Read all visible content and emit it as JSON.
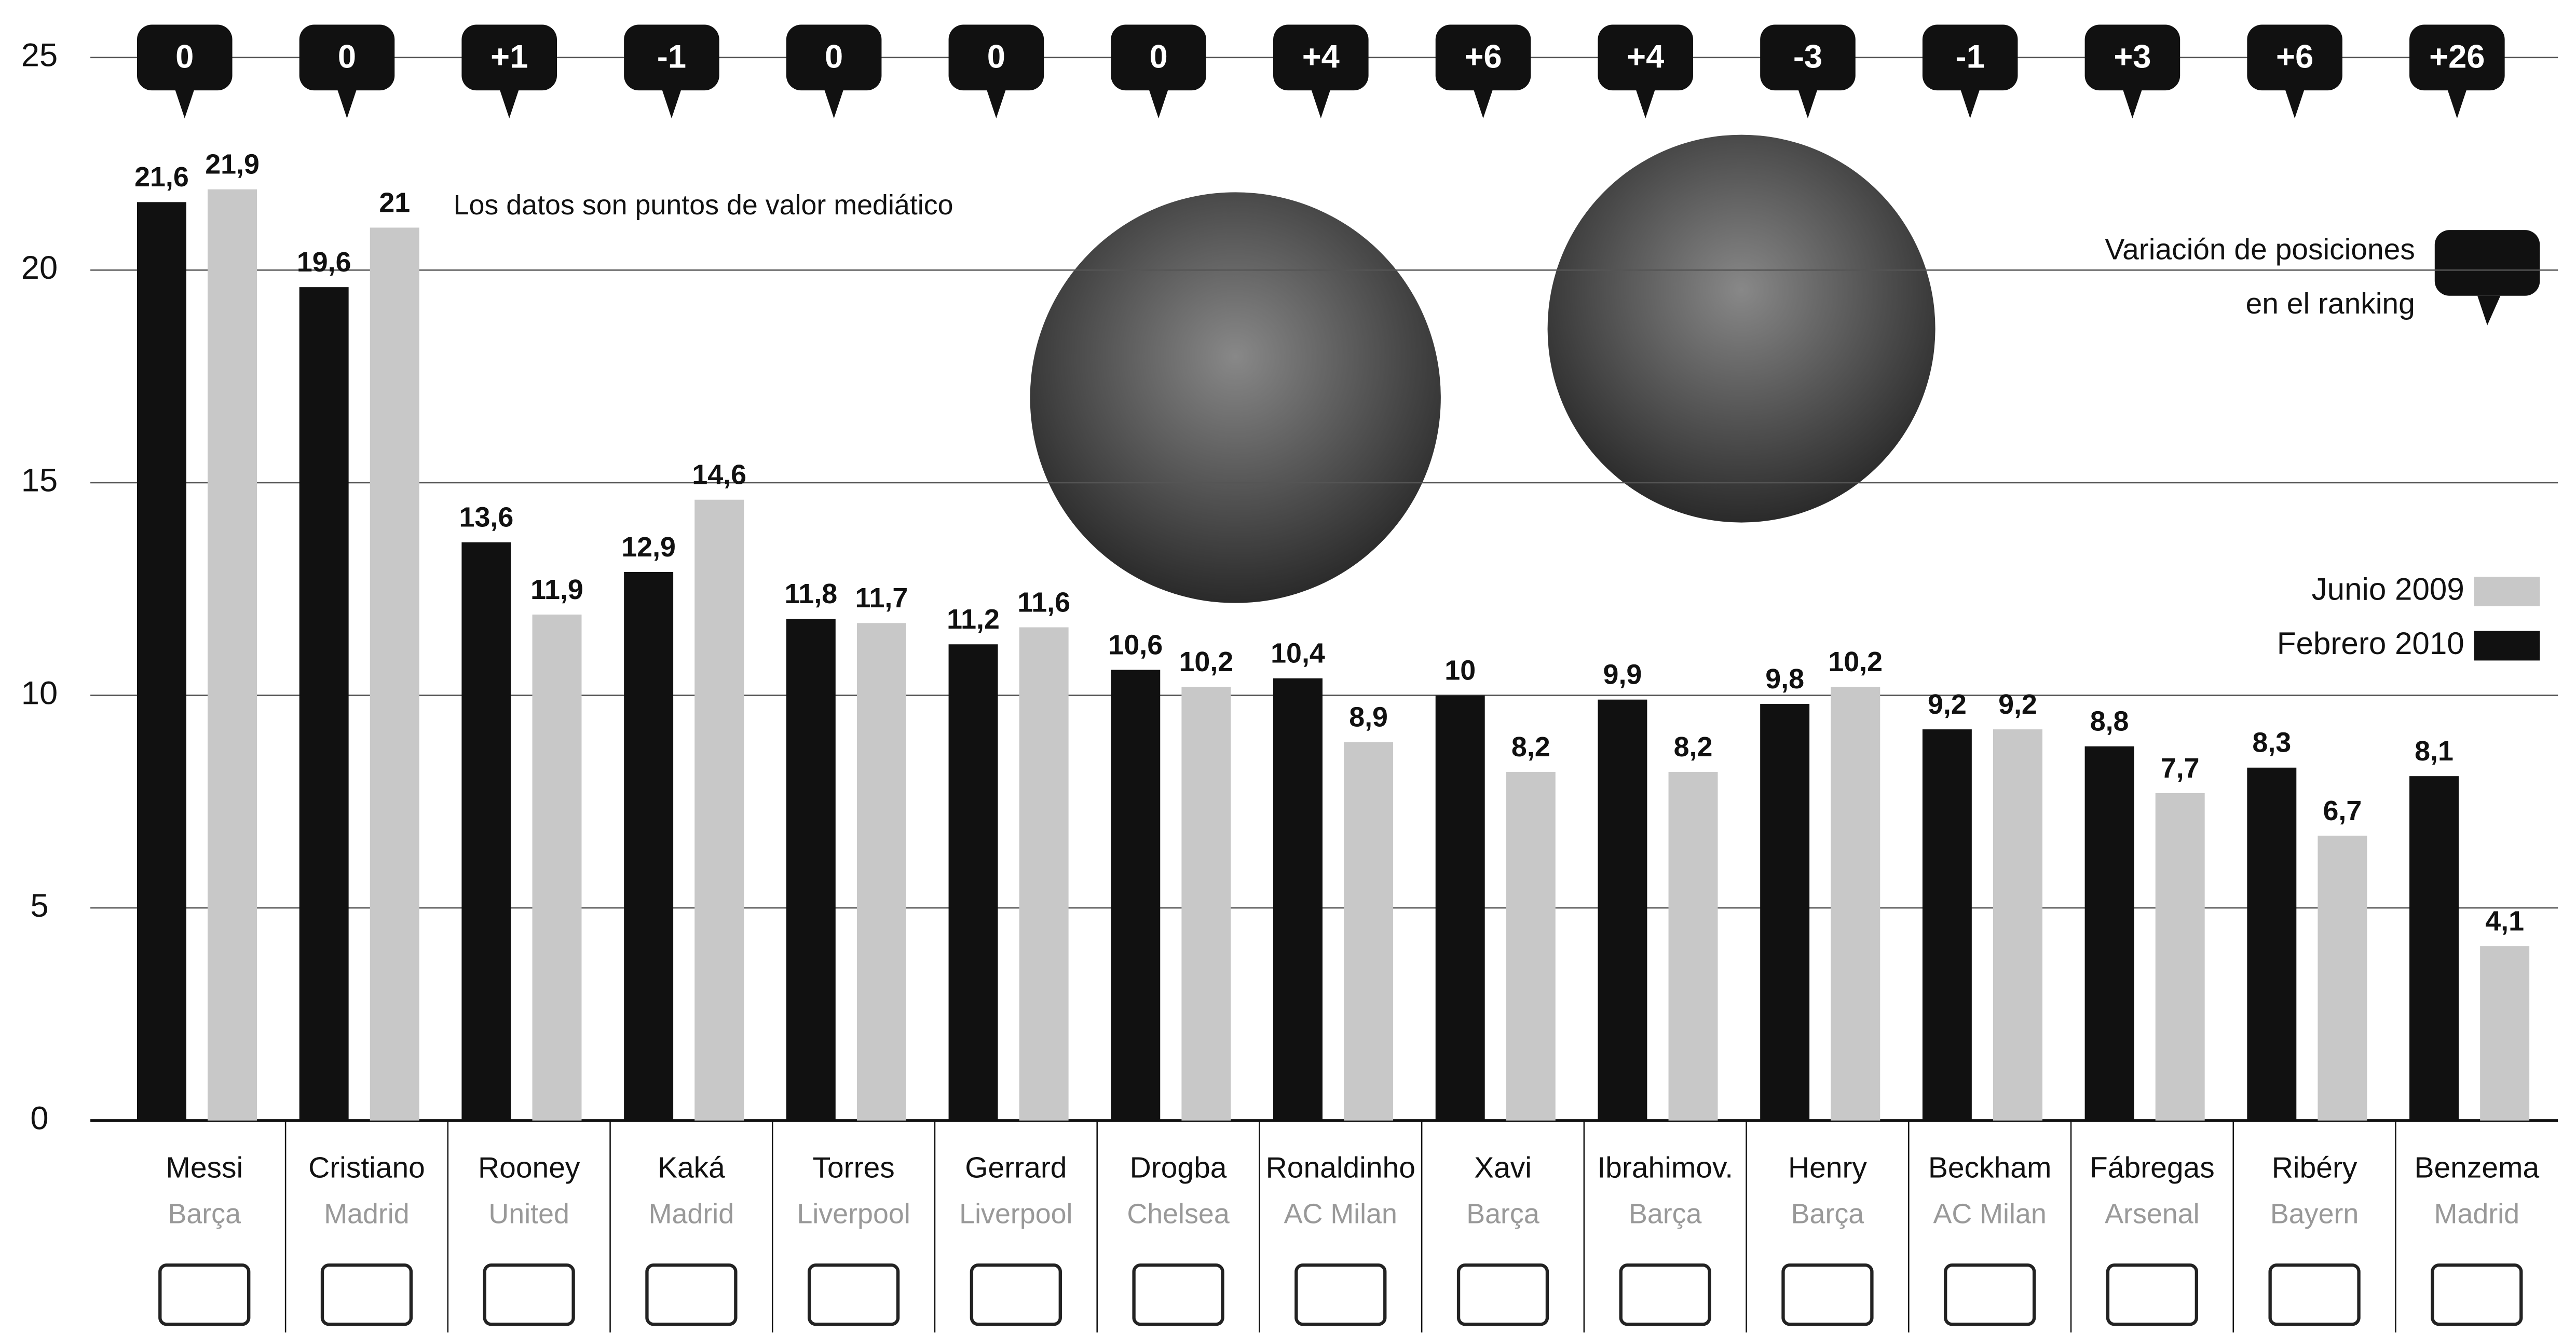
{
  "chart_data": {
    "type": "bar",
    "note": "Los datos son puntos de valor mediático",
    "variation_label": [
      "Variación de posiciones",
      "en el ranking"
    ],
    "categories": [
      "Messi",
      "Cristiano",
      "Rooney",
      "Kaká",
      "Torres",
      "Gerrard",
      "Drogba",
      "Ronaldinho",
      "Xavi",
      "Ibrahimov.",
      "Henry",
      "Beckham",
      "Fábregas",
      "Ribéry",
      "Benzema"
    ],
    "clubs": [
      "Barça",
      "Madrid",
      "United",
      "Madrid",
      "Liverpool",
      "Liverpool",
      "Chelsea",
      "AC Milan",
      "Barça",
      "Barça",
      "Barça",
      "AC Milan",
      "Arsenal",
      "Bayern",
      "Madrid"
    ],
    "position_changes": [
      "0",
      "0",
      "+1",
      "-1",
      "0",
      "0",
      "0",
      "+4",
      "+6",
      "+4",
      "-3",
      "-1",
      "+3",
      "+6",
      "+26"
    ],
    "series": [
      {
        "name": "Febrero 2010",
        "color": "#111111",
        "values": [
          21.6,
          19.6,
          13.6,
          12.9,
          11.8,
          11.2,
          10.6,
          10.4,
          10,
          9.9,
          9.8,
          9.2,
          8.8,
          8.3,
          8.1
        ],
        "value_labels": [
          "21,6",
          "19,6",
          "13,6",
          "12,9",
          "11,8",
          "11,2",
          "10,6",
          "10,4",
          "10",
          "9,9",
          "9,8",
          "9,2",
          "8,8",
          "8,3",
          "8,1"
        ]
      },
      {
        "name": "Junio 2009",
        "color": "#c8c8c8",
        "values": [
          21.9,
          21,
          11.9,
          14.6,
          11.7,
          11.6,
          10.2,
          8.9,
          8.2,
          8.2,
          10.2,
          9.2,
          7.7,
          6.7,
          4.1
        ],
        "value_labels": [
          "21,9",
          "21",
          "11,9",
          "14,6",
          "11,7",
          "11,6",
          "10,2",
          "8,9",
          "8,2",
          "8,2",
          "10,2",
          "9,2",
          "7,7",
          "6,7",
          "4,1"
        ]
      }
    ],
    "ylim": [
      0,
      25
    ],
    "yticks": [
      0,
      5,
      10,
      15,
      20,
      25
    ],
    "grid": true
  }
}
